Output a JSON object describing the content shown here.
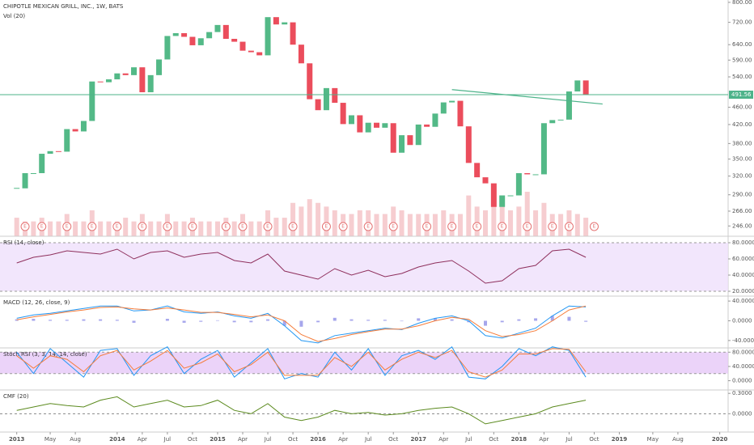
{
  "chart_data": [
    {
      "type": "candlestick",
      "title": "CHIPOTLE MEXICAN GRILL, INC., 1W, BATS",
      "log": true,
      "xlim": [
        "2012-11",
        "2020-02"
      ],
      "xticks": [
        {
          "value": "2013-01",
          "label": "2013"
        },
        {
          "value": "2013-05",
          "label": "May"
        },
        {
          "value": "2013-08",
          "label": "Aug"
        },
        {
          "value": "2014-01",
          "label": "2014"
        },
        {
          "value": "2014-04",
          "label": "Apr"
        },
        {
          "value": "2014-07",
          "label": "Jul"
        },
        {
          "value": "2014-10",
          "label": "Oct"
        },
        {
          "value": "2015-01",
          "label": "2015"
        },
        {
          "value": "2015-04",
          "label": "Apr"
        },
        {
          "value": "2015-07",
          "label": "Jul"
        },
        {
          "value": "2015-10",
          "label": "Oct"
        },
        {
          "value": "2016-01",
          "label": "2016"
        },
        {
          "value": "2016-04",
          "label": "Apr"
        },
        {
          "value": "2016-07",
          "label": "Jul"
        },
        {
          "value": "2016-10",
          "label": "Oct"
        },
        {
          "value": "2017-01",
          "label": "2017"
        },
        {
          "value": "2017-04",
          "label": "Apr"
        },
        {
          "value": "2017-07",
          "label": "Jul"
        },
        {
          "value": "2017-10",
          "label": "Oct"
        },
        {
          "value": "2018-01",
          "label": "2018"
        },
        {
          "value": "2018-04",
          "label": "Apr"
        },
        {
          "value": "2018-07",
          "label": "Jul"
        },
        {
          "value": "2018-10",
          "label": "Oct"
        },
        {
          "value": "2019-01",
          "label": "2019"
        },
        {
          "value": "2019-05",
          "label": "May"
        },
        {
          "value": "2019-08",
          "label": "Aug"
        },
        {
          "value": "2020-01",
          "label": "2020"
        }
      ],
      "x": [
        "2013-01",
        "2013-02",
        "2013-03",
        "2013-04",
        "2013-05",
        "2013-06",
        "2013-07",
        "2013-08",
        "2013-09",
        "2013-10",
        "2013-11",
        "2013-12",
        "2014-01",
        "2014-02",
        "2014-03",
        "2014-04",
        "2014-05",
        "2014-06",
        "2014-07",
        "2014-08",
        "2014-09",
        "2014-10",
        "2014-11",
        "2014-12",
        "2015-01",
        "2015-02",
        "2015-03",
        "2015-04",
        "2015-05",
        "2015-06",
        "2015-07",
        "2015-08",
        "2015-09",
        "2015-10",
        "2015-11",
        "2015-12",
        "2016-01",
        "2016-02",
        "2016-03",
        "2016-04",
        "2016-05",
        "2016-06",
        "2016-07",
        "2016-08",
        "2016-09",
        "2016-10",
        "2016-11",
        "2016-12",
        "2017-01",
        "2017-02",
        "2017-03",
        "2017-04",
        "2017-05",
        "2017-06",
        "2017-07",
        "2017-08",
        "2017-09",
        "2017-10",
        "2017-11",
        "2017-12",
        "2018-01",
        "2018-02",
        "2018-03",
        "2018-04",
        "2018-05",
        "2018-06",
        "2018-07",
        "2018-08",
        "2018-09"
      ],
      "values": [
        300,
        325,
        325,
        360,
        365,
        364,
        410,
        405,
        428,
        527,
        525,
        533,
        550,
        545,
        568,
        498,
        545,
        592,
        670,
        680,
        667,
        638,
        662,
        684,
        710,
        660,
        650,
        620,
        615,
        605,
        740,
        712,
        720,
        640,
        580,
        480,
        453,
        509,
        471,
        421,
        441,
        403,
        424,
        413,
        423,
        362,
        397,
        377,
        420,
        415,
        445,
        472,
        476,
        416,
        343,
        318,
        308,
        272,
        289,
        289,
        325,
        323,
        323,
        423,
        430,
        431,
        500,
        530,
        491.56
      ],
      "ylim": [
        233,
        810
      ],
      "yticks": [
        {
          "value": 800,
          "label": "800.00"
        },
        {
          "value": 720,
          "label": "720.00"
        },
        {
          "value": 640,
          "label": "640.00"
        },
        {
          "value": 590,
          "label": "590.00"
        },
        {
          "value": 540,
          "label": "540.00"
        },
        {
          "value": 460,
          "label": "460.00"
        },
        {
          "value": 420,
          "label": "420.00"
        },
        {
          "value": 380,
          "label": "380.00"
        },
        {
          "value": 350,
          "label": "350.00"
        },
        {
          "value": 320,
          "label": "320.00"
        },
        {
          "value": 290,
          "label": "290.00"
        },
        {
          "value": 266,
          "label": "266.00"
        },
        {
          "value": 246,
          "label": "246.00"
        }
      ],
      "up_color": "#53b987",
      "down_color": "#eb4d5c",
      "last_price": 491.56,
      "last_price_color": "#4db38a",
      "trendline": {
        "x": [
          "2017-05",
          "2018-11"
        ],
        "values": [
          505,
          468
        ],
        "color": "#4db38a"
      },
      "volume": {
        "title": "Vol (20)",
        "color": "#f2b8bc",
        "values": [
          5,
          4,
          4,
          5,
          4,
          4,
          6,
          4,
          4,
          7,
          4,
          4,
          4,
          5,
          4,
          6,
          4,
          4,
          6,
          4,
          4,
          5,
          4,
          4,
          4,
          5,
          4,
          6,
          4,
          4,
          7,
          5,
          5,
          9,
          8,
          10,
          9,
          8,
          7,
          6,
          6,
          7,
          7,
          6,
          6,
          8,
          7,
          6,
          6,
          6,
          6,
          7,
          6,
          6,
          11,
          8,
          7,
          8,
          9,
          7,
          8,
          12,
          7,
          9,
          6,
          6,
          7,
          6,
          5
        ]
      },
      "events": [
        {
          "x": "2013-02",
          "label": "E"
        },
        {
          "x": "2013-04",
          "label": "E"
        },
        {
          "x": "2013-07",
          "label": "E"
        },
        {
          "x": "2013-10",
          "label": "E"
        },
        {
          "x": "2014-01",
          "label": "E"
        },
        {
          "x": "2014-04",
          "label": "E"
        },
        {
          "x": "2014-07",
          "label": "E"
        },
        {
          "x": "2014-10",
          "label": "E"
        },
        {
          "x": "2015-02",
          "label": "E"
        },
        {
          "x": "2015-04",
          "label": "E"
        },
        {
          "x": "2015-07",
          "label": "E"
        },
        {
          "x": "2015-10",
          "label": "E"
        },
        {
          "x": "2016-02",
          "label": "E"
        },
        {
          "x": "2016-04",
          "label": "E"
        },
        {
          "x": "2016-07",
          "label": "E"
        },
        {
          "x": "2016-10",
          "label": "E"
        },
        {
          "x": "2017-02",
          "label": "E"
        },
        {
          "x": "2017-05",
          "label": "E"
        },
        {
          "x": "2017-08",
          "label": "E"
        },
        {
          "x": "2017-11",
          "label": "E"
        },
        {
          "x": "2018-02",
          "label": "E"
        },
        {
          "x": "2018-05",
          "label": "E"
        },
        {
          "x": "2018-07",
          "label": "E"
        },
        {
          "x": "2018-10",
          "label": "E"
        }
      ]
    },
    {
      "type": "line",
      "title": "RSI (14, close)",
      "x": [
        "2013-01",
        "2013-03",
        "2013-05",
        "2013-07",
        "2013-09",
        "2013-11",
        "2014-01",
        "2014-03",
        "2014-05",
        "2014-07",
        "2014-09",
        "2014-11",
        "2015-01",
        "2015-03",
        "2015-05",
        "2015-07",
        "2015-09",
        "2015-11",
        "2016-01",
        "2016-03",
        "2016-05",
        "2016-07",
        "2016-09",
        "2016-11",
        "2017-01",
        "2017-03",
        "2017-05",
        "2017-07",
        "2017-09",
        "2017-11",
        "2018-01",
        "2018-03",
        "2018-05",
        "2018-07",
        "2018-09"
      ],
      "series": [
        {
          "name": "RSI",
          "color": "#8e2f5c",
          "values": [
            55,
            62,
            65,
            70,
            68,
            66,
            72,
            60,
            68,
            70,
            62,
            66,
            68,
            58,
            55,
            66,
            45,
            40,
            35,
            48,
            40,
            46,
            38,
            42,
            50,
            55,
            58,
            45,
            30,
            33,
            48,
            52,
            70,
            72,
            62
          ]
        }
      ],
      "ylim": [
        14,
        88
      ],
      "band": [
        20,
        80
      ],
      "band_color": "#efe0fb",
      "yticks": [
        {
          "value": 80,
          "label": "80.0000"
        },
        {
          "value": 60,
          "label": "60.0000"
        },
        {
          "value": 40,
          "label": "40.0000"
        },
        {
          "value": 20,
          "label": "20.0000"
        }
      ]
    },
    {
      "type": "line",
      "title": "MACD (12, 26, close, 9)",
      "x": [
        "2013-01",
        "2013-03",
        "2013-05",
        "2013-07",
        "2013-09",
        "2013-11",
        "2014-01",
        "2014-03",
        "2014-05",
        "2014-07",
        "2014-09",
        "2014-11",
        "2015-01",
        "2015-03",
        "2015-05",
        "2015-07",
        "2015-09",
        "2015-11",
        "2016-01",
        "2016-03",
        "2016-05",
        "2016-07",
        "2016-09",
        "2016-11",
        "2017-01",
        "2017-03",
        "2017-05",
        "2017-07",
        "2017-09",
        "2017-11",
        "2018-01",
        "2018-03",
        "2018-05",
        "2018-07",
        "2018-09"
      ],
      "series": [
        {
          "name": "Histogram",
          "kind": "bar",
          "color": "#6b6be0",
          "values": [
            3,
            4,
            2,
            2,
            3,
            3,
            2,
            -4,
            0,
            4,
            -4,
            -2,
            1,
            -3,
            -3,
            3,
            -10,
            -12,
            -3,
            6,
            3,
            2,
            2,
            -1,
            5,
            5,
            3,
            -3,
            -10,
            -3,
            3,
            5,
            10,
            8,
            -2
          ]
        },
        {
          "name": "MACD",
          "color": "#2196f3",
          "values": [
            5,
            12,
            15,
            20,
            25,
            30,
            30,
            20,
            22,
            30,
            18,
            15,
            18,
            10,
            5,
            15,
            -10,
            -40,
            -45,
            -30,
            -25,
            -20,
            -15,
            -18,
            -5,
            5,
            10,
            0,
            -30,
            -35,
            -25,
            -15,
            10,
            30,
            28
          ]
        },
        {
          "name": "Signal",
          "color": "#f57c3a",
          "values": [
            2,
            8,
            13,
            18,
            22,
            27,
            28,
            24,
            22,
            26,
            22,
            17,
            17,
            13,
            8,
            12,
            0,
            -28,
            -42,
            -36,
            -28,
            -22,
            -17,
            -17,
            -10,
            0,
            7,
            3,
            -20,
            -32,
            -28,
            -20,
            0,
            22,
            30
          ]
        }
      ],
      "ylim": [
        -55,
        50
      ],
      "yticks": [
        {
          "value": 40,
          "label": "40.0000"
        },
        {
          "value": 0,
          "label": "0.0000"
        },
        {
          "value": -40,
          "label": "-40.0000"
        }
      ]
    },
    {
      "type": "line",
      "title": "Stoch RSI (3, 3, 14, 14, close)",
      "x": [
        "2013-01",
        "2013-03",
        "2013-05",
        "2013-07",
        "2013-09",
        "2013-11",
        "2014-01",
        "2014-03",
        "2014-05",
        "2014-07",
        "2014-09",
        "2014-11",
        "2015-01",
        "2015-03",
        "2015-05",
        "2015-07",
        "2015-09",
        "2015-11",
        "2016-01",
        "2016-03",
        "2016-05",
        "2016-07",
        "2016-09",
        "2016-11",
        "2017-01",
        "2017-03",
        "2017-05",
        "2017-07",
        "2017-09",
        "2017-11",
        "2018-01",
        "2018-03",
        "2018-05",
        "2018-07",
        "2018-09"
      ],
      "series": [
        {
          "name": "K",
          "color": "#2196f3",
          "values": [
            80,
            20,
            90,
            50,
            10,
            85,
            90,
            15,
            70,
            95,
            20,
            60,
            85,
            10,
            50,
            90,
            5,
            20,
            10,
            80,
            30,
            90,
            15,
            70,
            85,
            60,
            95,
            10,
            5,
            40,
            90,
            70,
            95,
            85,
            10
          ]
        },
        {
          "name": "D",
          "color": "#f57c3a",
          "values": [
            70,
            35,
            70,
            60,
            25,
            70,
            85,
            30,
            55,
            85,
            35,
            50,
            75,
            25,
            45,
            80,
            15,
            15,
            15,
            65,
            40,
            80,
            30,
            60,
            80,
            65,
            85,
            25,
            10,
            30,
            75,
            75,
            90,
            88,
            25
          ]
        }
      ],
      "ylim": [
        -26,
        92
      ],
      "band": [
        20,
        80
      ],
      "band_color": "#e6c8f8",
      "yticks": [
        {
          "value": 80,
          "label": "80.0000"
        },
        {
          "value": 40,
          "label": "40.0000"
        },
        {
          "value": 0,
          "label": "0.0000"
        }
      ]
    },
    {
      "type": "line",
      "title": "CMF (20)",
      "x": [
        "2013-01",
        "2013-03",
        "2013-05",
        "2013-07",
        "2013-09",
        "2013-11",
        "2014-01",
        "2014-03",
        "2014-05",
        "2014-07",
        "2014-09",
        "2014-11",
        "2015-01",
        "2015-03",
        "2015-05",
        "2015-07",
        "2015-09",
        "2015-11",
        "2016-01",
        "2016-03",
        "2016-05",
        "2016-07",
        "2016-09",
        "2016-11",
        "2017-01",
        "2017-03",
        "2017-05",
        "2017-07",
        "2017-09",
        "2017-11",
        "2018-01",
        "2018-03",
        "2018-05",
        "2018-07",
        "2018-09"
      ],
      "series": [
        {
          "name": "CMF",
          "color": "#5b8a1e",
          "values": [
            0.05,
            0.1,
            0.15,
            0.12,
            0.1,
            0.2,
            0.25,
            0.1,
            0.15,
            0.2,
            0.1,
            0.12,
            0.2,
            0.05,
            0,
            0.15,
            -0.05,
            -0.1,
            -0.05,
            0.05,
            0,
            0.02,
            -0.02,
            0,
            0.05,
            0.08,
            0.1,
            0,
            -0.15,
            -0.1,
            -0.05,
            0,
            0.1,
            0.15,
            0.2
          ]
        }
      ],
      "ylim": [
        -0.27,
        0.35
      ],
      "zero_line": 0,
      "yticks": [
        {
          "value": 0.3,
          "label": "0.3000"
        },
        {
          "value": 0,
          "label": "0.0000"
        }
      ]
    }
  ]
}
